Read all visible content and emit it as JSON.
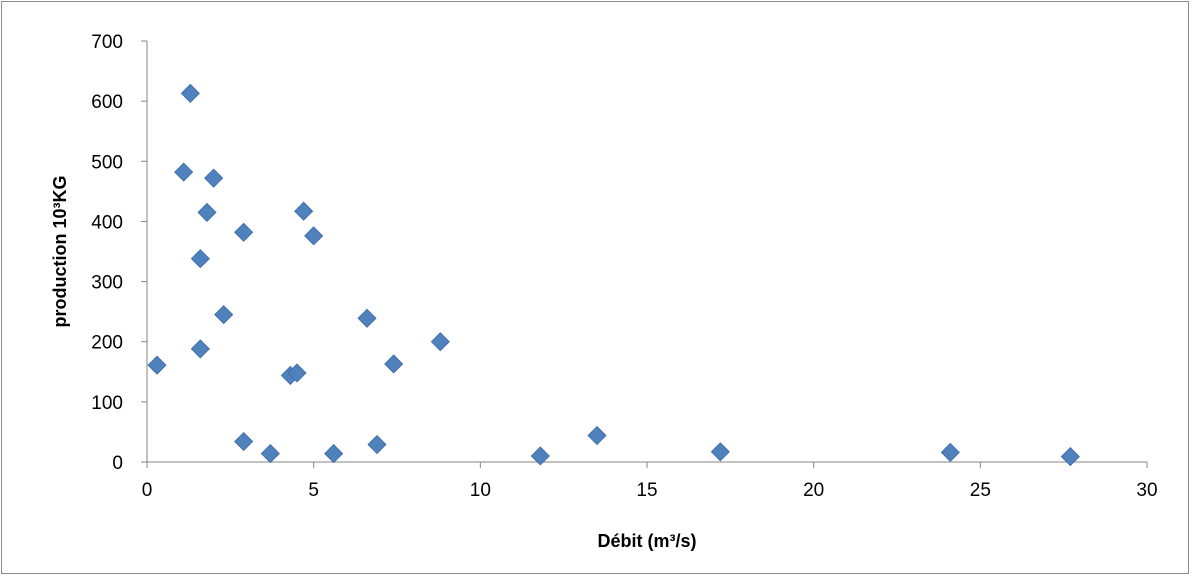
{
  "chart_data": {
    "type": "scatter",
    "title": "",
    "xlabel": "Débit (m³/s)",
    "ylabel": "production 10³KG",
    "xlim": [
      0,
      30
    ],
    "ylim": [
      0,
      700
    ],
    "x_ticks": [
      "0",
      "5",
      "10",
      "15",
      "20",
      "25",
      "30"
    ],
    "y_ticks": [
      "0",
      "100",
      "200",
      "300",
      "400",
      "500",
      "600",
      "700"
    ],
    "grid": false,
    "legend": "none",
    "marker": "diamond",
    "marker_color": "#4F81BD",
    "points": [
      {
        "x": 0.3,
        "y": 161
      },
      {
        "x": 1.1,
        "y": 482
      },
      {
        "x": 1.3,
        "y": 613
      },
      {
        "x": 1.6,
        "y": 338
      },
      {
        "x": 1.6,
        "y": 188
      },
      {
        "x": 1.8,
        "y": 415
      },
      {
        "x": 2.0,
        "y": 472
      },
      {
        "x": 2.3,
        "y": 245
      },
      {
        "x": 2.9,
        "y": 382
      },
      {
        "x": 2.9,
        "y": 34
      },
      {
        "x": 3.7,
        "y": 14
      },
      {
        "x": 4.3,
        "y": 144
      },
      {
        "x": 4.5,
        "y": 148
      },
      {
        "x": 4.7,
        "y": 417
      },
      {
        "x": 5.0,
        "y": 376
      },
      {
        "x": 5.6,
        "y": 14
      },
      {
        "x": 6.6,
        "y": 239
      },
      {
        "x": 6.9,
        "y": 29
      },
      {
        "x": 7.4,
        "y": 163
      },
      {
        "x": 8.8,
        "y": 200
      },
      {
        "x": 11.8,
        "y": 10
      },
      {
        "x": 13.5,
        "y": 44
      },
      {
        "x": 17.2,
        "y": 17
      },
      {
        "x": 24.1,
        "y": 16
      },
      {
        "x": 27.7,
        "y": 9
      }
    ]
  }
}
